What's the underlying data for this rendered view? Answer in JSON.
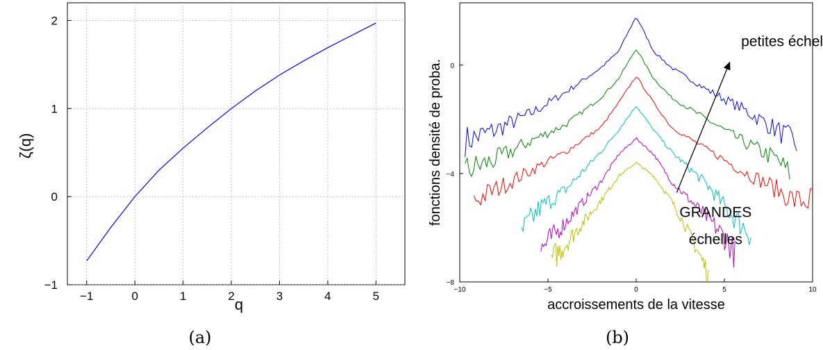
{
  "panels": {
    "a": {
      "caption": "(a)"
    },
    "b": {
      "caption": "(b)"
    }
  },
  "chart_data": [
    {
      "type": "line",
      "xlabel": "q",
      "ylabel": "ζ(q)",
      "xlim": [
        -1.4,
        5.6
      ],
      "ylim": [
        -1,
        2.2
      ],
      "xticks": [
        -1,
        0,
        1,
        2,
        3,
        4,
        5
      ],
      "yticks": [
        -1,
        0,
        1,
        2
      ],
      "grid": true,
      "line_color": "#0000ff",
      "x": [
        -1,
        -0.5,
        0,
        0.5,
        1,
        1.5,
        2,
        2.5,
        3,
        3.5,
        4,
        4.5,
        5
      ],
      "y": [
        -0.73,
        -0.35,
        0,
        0.3,
        0.55,
        0.78,
        1.0,
        1.2,
        1.38,
        1.54,
        1.69,
        1.83,
        1.97
      ]
    },
    {
      "type": "line",
      "xlabel": "accroissements de la vitesse",
      "ylabel": "fonctions densité de proba.",
      "xlim": [
        -10,
        10
      ],
      "ylim": [
        -8,
        2.3
      ],
      "xticks": [
        -10,
        -5,
        0,
        5,
        10
      ],
      "yticks": [
        -8,
        -4,
        0
      ],
      "grid": false,
      "annotations": [
        {
          "text": "petites échelles",
          "x": 8.8,
          "y": 0.7
        },
        {
          "text": "GRANDES",
          "x": 4.5,
          "y": -5.6
        },
        {
          "text": "échelles",
          "x": 4.5,
          "y": -6.6
        }
      ],
      "arrow": {
        "from": [
          2.3,
          -4.7
        ],
        "to": [
          5.3,
          0.1
        ]
      },
      "series": [
        {
          "color": "#0000ff",
          "peak": 1.8,
          "extent": [
            -9.7,
            9.1
          ],
          "x": [
            -9.7,
            -8,
            -6,
            -4,
            -2,
            -1,
            0,
            1,
            2,
            4,
            6,
            8,
            9.1
          ],
          "y": [
            -2.8,
            -2.4,
            -1.8,
            -1.0,
            -0.1,
            0.5,
            1.8,
            0.5,
            -0.1,
            -0.9,
            -1.6,
            -2.4,
            -2.9
          ]
        },
        {
          "color": "#008000",
          "peak": 0.6,
          "extent": [
            -9.7,
            8.7
          ],
          "x": [
            -9.7,
            -8,
            -6,
            -4,
            -2,
            -1,
            0,
            1,
            2,
            4,
            6,
            8,
            8.7
          ],
          "y": [
            -3.9,
            -3.5,
            -2.8,
            -2.2,
            -1.2,
            -0.5,
            0.6,
            -0.5,
            -1.2,
            -2.0,
            -2.8,
            -3.5,
            -4.0
          ]
        },
        {
          "color": "#ff0000",
          "peak": -0.4,
          "extent": [
            -9.2,
            10
          ],
          "x": [
            -9.2,
            -8,
            -6,
            -4,
            -2,
            -1,
            0,
            1,
            2,
            4,
            6,
            7.5,
            9,
            10
          ],
          "y": [
            -5.0,
            -4.6,
            -3.9,
            -3.2,
            -2.3,
            -1.4,
            -0.4,
            -1.4,
            -2.3,
            -3.1,
            -3.9,
            -4.4,
            -5.0,
            -5.0
          ]
        },
        {
          "color": "#00bfbf",
          "peak": -1.5,
          "extent": [
            -6.5,
            6.5
          ],
          "x": [
            -6.5,
            -5.5,
            -4,
            -2,
            -1,
            0,
            1,
            2,
            4,
            5.5,
            6.5
          ],
          "y": [
            -6.2,
            -5.3,
            -4.6,
            -3.2,
            -2.4,
            -1.5,
            -2.4,
            -3.2,
            -4.4,
            -5.6,
            -6.2
          ]
        },
        {
          "color": "#bf00bf",
          "peak": -2.7,
          "extent": [
            -5.4,
            5.6
          ],
          "x": [
            -5.4,
            -4,
            -2,
            -1,
            0,
            1,
            2,
            4,
            5.2,
            5.6
          ],
          "y": [
            -6.8,
            -5.8,
            -4.3,
            -3.3,
            -2.7,
            -3.3,
            -4.3,
            -5.6,
            -6.5,
            -7.0
          ]
        },
        {
          "color": "#bfbf00",
          "peak": -3.6,
          "extent": [
            -4.8,
            4.1
          ],
          "x": [
            -4.8,
            -4,
            -2,
            -1,
            0,
            1,
            2,
            3,
            4.1
          ],
          "y": [
            -7.2,
            -6.6,
            -5.0,
            -4.1,
            -3.6,
            -4.1,
            -5.0,
            -6.2,
            -7.7
          ]
        }
      ]
    }
  ]
}
